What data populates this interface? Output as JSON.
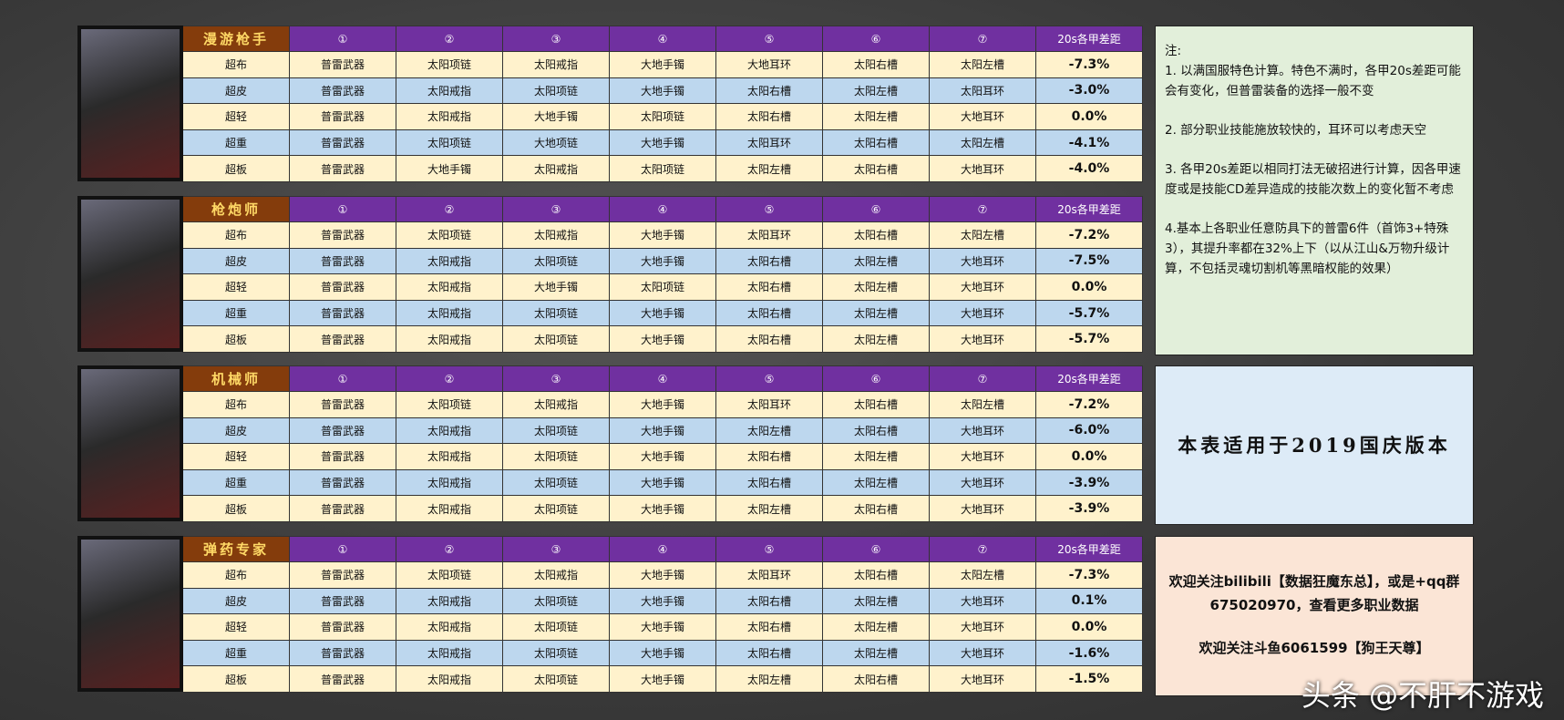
{
  "headers": {
    "slots": [
      "①",
      "②",
      "③",
      "④",
      "⑤",
      "⑥",
      "⑦"
    ],
    "diff": "20s各甲差距"
  },
  "classes": [
    {
      "name": "漫游枪手",
      "rows": [
        {
          "armor": "超布",
          "items": [
            "普雷武器",
            "太阳项链",
            "太阳戒指",
            "大地手镯",
            "大地耳环",
            "太阳右槽",
            "太阳左槽"
          ],
          "diff": "-7.3%"
        },
        {
          "armor": "超皮",
          "items": [
            "普雷武器",
            "太阳戒指",
            "太阳项链",
            "大地手镯",
            "太阳右槽",
            "太阳左槽",
            "太阳耳环"
          ],
          "diff": "-3.0%"
        },
        {
          "armor": "超轻",
          "items": [
            "普雷武器",
            "太阳戒指",
            "大地手镯",
            "太阳项链",
            "太阳右槽",
            "太阳左槽",
            "大地耳环"
          ],
          "diff": "0.0%"
        },
        {
          "armor": "超重",
          "items": [
            "普雷武器",
            "太阳项链",
            "大地项链",
            "大地手镯",
            "太阳耳环",
            "太阳右槽",
            "太阳左槽"
          ],
          "diff": "-4.1%"
        },
        {
          "armor": "超板",
          "items": [
            "普雷武器",
            "大地手镯",
            "太阳戒指",
            "太阳项链",
            "太阳左槽",
            "太阳右槽",
            "大地耳环"
          ],
          "diff": "-4.0%"
        }
      ]
    },
    {
      "name": "枪炮师",
      "rows": [
        {
          "armor": "超布",
          "items": [
            "普雷武器",
            "太阳项链",
            "太阳戒指",
            "大地手镯",
            "太阳耳环",
            "太阳右槽",
            "太阳左槽"
          ],
          "diff": "-7.2%"
        },
        {
          "armor": "超皮",
          "items": [
            "普雷武器",
            "太阳戒指",
            "太阳项链",
            "大地手镯",
            "太阳右槽",
            "太阳左槽",
            "大地耳环"
          ],
          "diff": "-7.5%"
        },
        {
          "armor": "超轻",
          "items": [
            "普雷武器",
            "太阳戒指",
            "大地手镯",
            "太阳项链",
            "太阳右槽",
            "太阳左槽",
            "大地耳环"
          ],
          "diff": "0.0%"
        },
        {
          "armor": "超重",
          "items": [
            "普雷武器",
            "太阳戒指",
            "太阳项链",
            "大地手镯",
            "太阳右槽",
            "太阳左槽",
            "大地耳环"
          ],
          "diff": "-5.7%"
        },
        {
          "armor": "超板",
          "items": [
            "普雷武器",
            "太阳戒指",
            "太阳项链",
            "大地手镯",
            "太阳右槽",
            "太阳左槽",
            "大地耳环"
          ],
          "diff": "-5.7%"
        }
      ]
    },
    {
      "name": "机械师",
      "rows": [
        {
          "armor": "超布",
          "items": [
            "普雷武器",
            "太阳项链",
            "太阳戒指",
            "大地手镯",
            "太阳耳环",
            "太阳右槽",
            "太阳左槽"
          ],
          "diff": "-7.2%"
        },
        {
          "armor": "超皮",
          "items": [
            "普雷武器",
            "太阳戒指",
            "太阳项链",
            "大地手镯",
            "太阳左槽",
            "太阳右槽",
            "大地耳环"
          ],
          "diff": "-6.0%"
        },
        {
          "armor": "超轻",
          "items": [
            "普雷武器",
            "太阳戒指",
            "太阳项链",
            "大地手镯",
            "太阳右槽",
            "太阳左槽",
            "大地耳环"
          ],
          "diff": "0.0%"
        },
        {
          "armor": "超重",
          "items": [
            "普雷武器",
            "太阳戒指",
            "太阳项链",
            "大地手镯",
            "太阳右槽",
            "太阳左槽",
            "大地耳环"
          ],
          "diff": "-3.9%"
        },
        {
          "armor": "超板",
          "items": [
            "普雷武器",
            "太阳戒指",
            "太阳项链",
            "大地手镯",
            "太阳左槽",
            "太阳右槽",
            "大地耳环"
          ],
          "diff": "-3.9%"
        }
      ]
    },
    {
      "name": "弹药专家",
      "rows": [
        {
          "armor": "超布",
          "items": [
            "普雷武器",
            "太阳项链",
            "太阳戒指",
            "大地手镯",
            "太阳耳环",
            "太阳右槽",
            "太阳左槽"
          ],
          "diff": "-7.3%"
        },
        {
          "armor": "超皮",
          "items": [
            "普雷武器",
            "太阳戒指",
            "太阳项链",
            "大地手镯",
            "太阳右槽",
            "太阳左槽",
            "大地耳环"
          ],
          "diff": "0.1%"
        },
        {
          "armor": "超轻",
          "items": [
            "普雷武器",
            "太阳戒指",
            "太阳项链",
            "大地手镯",
            "太阳右槽",
            "太阳左槽",
            "大地耳环"
          ],
          "diff": "0.0%"
        },
        {
          "armor": "超重",
          "items": [
            "普雷武器",
            "太阳戒指",
            "太阳项链",
            "大地手镯",
            "太阳右槽",
            "太阳左槽",
            "大地耳环"
          ],
          "diff": "-1.6%"
        },
        {
          "armor": "超板",
          "items": [
            "普雷武器",
            "太阳戒指",
            "太阳项链",
            "大地手镯",
            "太阳左槽",
            "太阳右槽",
            "大地耳环"
          ],
          "diff": "-1.5%"
        }
      ]
    }
  ],
  "notes": {
    "title": "注:",
    "items": [
      "1. 以满国服特色计算。特色不满时，各甲20s差距可能会有变化，但普雷装备的选择一般不变",
      "2. 部分职业技能施放较快的，耳环可以考虑天空",
      "3. 各甲20s差距以相同打法无破招进行计算，因各甲速度或是技能CD差异造成的技能次数上的变化暂不考虑",
      "4.基本上各职业任意防具下的普雷6件（首饰3+特殊3），其提升率都在32%上下（以从江山&万物升级计算，不包括灵魂切割机等黑暗权能的效果）"
    ]
  },
  "version": "本表适用于2019国庆版本",
  "follow": [
    "欢迎关注bilibili【数据狂魔东总】，或是+qq群675020970，查看更多职业数据",
    "欢迎关注斗鱼6061599【狗王天尊】"
  ],
  "watermark": "头条 @不肝不游戏"
}
